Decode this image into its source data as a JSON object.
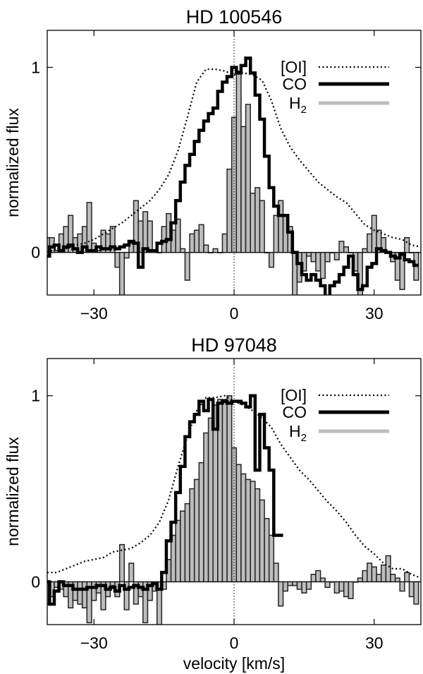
{
  "chart_data": [
    {
      "type": "line",
      "title": "HD 100546",
      "xlabel": "",
      "ylabel": "normalized flux",
      "xlim": [
        -40,
        40
      ],
      "ylim": [
        -0.23,
        1.2
      ],
      "xticks": [
        -30,
        0,
        30
      ],
      "xtick_labels": [
        "−30",
        "0",
        "30"
      ],
      "yticks": [
        0,
        1
      ],
      "ytick_labels": [
        "0",
        "1"
      ],
      "legend_position": "top-right",
      "series": [
        {
          "name": "[OI]",
          "style": "dotted",
          "color": "#000000",
          "x": [
            -40,
            -38,
            -36,
            -34,
            -32,
            -30,
            -28,
            -26,
            -24,
            -22,
            -20,
            -18,
            -16,
            -14,
            -12,
            -10,
            -8,
            -6,
            -4,
            -2,
            0,
            2,
            4,
            6,
            8,
            10,
            12,
            14,
            16,
            18,
            20,
            22,
            24,
            26,
            28,
            30,
            32,
            34,
            36,
            38,
            40
          ],
          "y": [
            0.0,
            0.02,
            0.02,
            0.04,
            0.05,
            0.07,
            0.1,
            0.13,
            0.16,
            0.2,
            0.24,
            0.28,
            0.34,
            0.42,
            0.55,
            0.73,
            0.92,
            0.99,
            0.99,
            0.98,
            0.96,
            0.97,
            0.96,
            0.93,
            0.82,
            0.67,
            0.57,
            0.5,
            0.44,
            0.38,
            0.34,
            0.3,
            0.27,
            0.21,
            0.15,
            0.12,
            0.1,
            0.08,
            0.07,
            0.04,
            0.03
          ]
        },
        {
          "name": "CO",
          "style": "step",
          "color": "#000000",
          "x": [
            -40,
            -39,
            -38,
            -37,
            -36,
            -35,
            -34,
            -33,
            -32,
            -31,
            -30,
            -29,
            -28,
            -27,
            -26,
            -25,
            -24,
            -23,
            -22,
            -21,
            -20,
            -19,
            -18,
            -17,
            -16,
            -15,
            -14,
            -13,
            -12,
            -11,
            -10,
            -9,
            -8,
            -7,
            -6,
            -5,
            -4,
            -3,
            -2,
            -1,
            0,
            1,
            2,
            3,
            4,
            5,
            6,
            7,
            8,
            9,
            10,
            11,
            12,
            13,
            14,
            15,
            16,
            17,
            18,
            19,
            20,
            21,
            22,
            23,
            24,
            25,
            26,
            27,
            28,
            29,
            30,
            31,
            32,
            33,
            34,
            35,
            36,
            37,
            38,
            39
          ],
          "y": [
            -0.02,
            0.03,
            0.04,
            0.01,
            0.03,
            0.04,
            0.02,
            0.0,
            0.03,
            0.01,
            0.01,
            0.03,
            0.02,
            0.02,
            0.03,
            0.02,
            0.03,
            0.04,
            0.06,
            0.05,
            -0.08,
            0.02,
            0.01,
            0.01,
            0.05,
            0.06,
            0.07,
            0.16,
            0.28,
            0.38,
            0.47,
            0.53,
            0.6,
            0.66,
            0.71,
            0.75,
            0.78,
            0.87,
            0.92,
            0.95,
            1.0,
            0.97,
            1.01,
            1.05,
            0.97,
            0.85,
            0.72,
            0.52,
            0.35,
            0.25,
            0.2,
            0.2,
            0.11,
            0.0,
            -0.06,
            -0.12,
            -0.15,
            -0.12,
            -0.15,
            -0.18,
            -0.25,
            -0.18,
            -0.16,
            -0.12,
            -0.08,
            -0.02,
            -0.12,
            -0.2,
            -0.18,
            -0.08,
            -0.06,
            0.02,
            0.01,
            0.0,
            -0.02,
            -0.03,
            -0.01,
            -0.04,
            -0.05,
            -0.07
          ]
        },
        {
          "name": "H2",
          "legend_label": "H",
          "legend_sub": "2",
          "style": "bar",
          "color": "#bdbdbd",
          "x": [
            -40,
            -39,
            -38,
            -37,
            -36,
            -35,
            -34,
            -33,
            -32,
            -31,
            -30,
            -29,
            -28,
            -27,
            -26,
            -25,
            -24,
            -23,
            -22,
            -21,
            -20,
            -19,
            -18,
            -17,
            -16,
            -15,
            -14,
            -13,
            -12,
            -11,
            -10,
            -9,
            -8,
            -7,
            -6,
            -5,
            -4,
            -3,
            -2,
            -1,
            0,
            1,
            2,
            3,
            4,
            5,
            6,
            7,
            8,
            9,
            10,
            11,
            12,
            13,
            14,
            15,
            16,
            17,
            18,
            19,
            20,
            21,
            22,
            23,
            24,
            25,
            26,
            27,
            28,
            29,
            30,
            31,
            32,
            33,
            34,
            35,
            36,
            37,
            38,
            39
          ],
          "y": [
            0.08,
            0.08,
            0.01,
            0.1,
            0.14,
            0.2,
            0.08,
            0.1,
            0.14,
            0.27,
            0.05,
            0.01,
            0.12,
            0.1,
            0.14,
            -0.08,
            -0.28,
            -0.03,
            0.05,
            0.28,
            0.17,
            0.22,
            0.17,
            0.01,
            0.0,
            0.14,
            0.21,
            0.12,
            0.18,
            0.02,
            -0.15,
            0.1,
            0.12,
            0.15,
            0.04,
            0.0,
            0.02,
            0.0,
            0.1,
            0.45,
            0.73,
            0.98,
            0.68,
            0.8,
            0.32,
            0.35,
            0.28,
            0.0,
            -0.08,
            0.2,
            0.28,
            0.2,
            0.14,
            -0.24,
            -0.16,
            -0.1,
            -0.02,
            -0.05,
            -0.1,
            -0.14,
            -0.05,
            0.0,
            -0.04,
            0.06,
            0.03,
            0.0,
            -0.1,
            -0.25,
            0.02,
            0.1,
            0.2,
            0.12,
            0.08,
            0.0,
            -0.05,
            -0.15,
            -0.2,
            0.08,
            0.0,
            -0.15
          ]
        }
      ]
    },
    {
      "type": "line",
      "title": "HD 97048",
      "xlabel": "velocity [km/s]",
      "ylabel": "normalized flux",
      "xlim": [
        -40,
        40
      ],
      "ylim": [
        -0.23,
        1.2
      ],
      "xticks": [
        -30,
        0,
        30
      ],
      "xtick_labels": [
        "−30",
        "0",
        "30"
      ],
      "yticks": [
        0,
        1
      ],
      "ytick_labels": [
        "0",
        "1"
      ],
      "legend_position": "top-right",
      "series": [
        {
          "name": "[OI]",
          "style": "dotted",
          "color": "#000000",
          "x": [
            -40,
            -38,
            -36,
            -34,
            -32,
            -30,
            -28,
            -26,
            -24,
            -22,
            -20,
            -18,
            -16,
            -14,
            -12,
            -10,
            -8,
            -6,
            -4,
            -2,
            0,
            2,
            4,
            6,
            8,
            10,
            12,
            14,
            16,
            18,
            20,
            22,
            24,
            26,
            28,
            30,
            32,
            34,
            36,
            38,
            40
          ],
          "y": [
            0.05,
            0.05,
            0.07,
            0.09,
            0.11,
            0.12,
            0.13,
            0.16,
            0.17,
            0.18,
            0.21,
            0.25,
            0.32,
            0.44,
            0.62,
            0.78,
            0.92,
            0.99,
            0.99,
            1.0,
            0.97,
            0.95,
            0.92,
            0.88,
            0.83,
            0.74,
            0.67,
            0.6,
            0.55,
            0.49,
            0.43,
            0.38,
            0.32,
            0.25,
            0.19,
            0.15,
            0.1,
            0.07,
            0.07,
            0.04,
            0.02
          ]
        },
        {
          "name": "CO",
          "style": "step",
          "color": "#000000",
          "x": [
            -40,
            -39,
            -38,
            -37,
            -36,
            -35,
            -34,
            -33,
            -32,
            -31,
            -30,
            -29,
            -28,
            -27,
            -26,
            -25,
            -24,
            -23,
            -22,
            -21,
            -20,
            -19,
            -18,
            -17,
            -16,
            -15,
            -14,
            -13,
            -12,
            -11,
            -10,
            -9,
            -8,
            -7,
            -6,
            -5,
            -4,
            -3,
            -2,
            -1,
            0,
            1,
            2,
            3,
            4,
            5,
            6,
            7,
            8,
            9,
            10
          ],
          "y": [
            0.0,
            -0.12,
            -0.05,
            0.0,
            -0.02,
            -0.02,
            -0.04,
            -0.04,
            -0.04,
            -0.03,
            -0.03,
            -0.02,
            -0.02,
            -0.04,
            -0.03,
            -0.05,
            -0.02,
            -0.04,
            -0.03,
            -0.02,
            -0.03,
            -0.04,
            -0.02,
            -0.01,
            -0.04,
            0.05,
            0.22,
            0.32,
            0.48,
            0.62,
            0.78,
            0.86,
            0.9,
            0.97,
            0.92,
            0.98,
            0.82,
            0.96,
            0.97,
            0.96,
            0.97,
            0.97,
            0.96,
            0.94,
            1.0,
            0.6,
            0.9,
            0.72,
            0.6,
            0.25,
            0.25
          ]
        },
        {
          "name": "H2",
          "legend_label": "H",
          "legend_sub": "2",
          "style": "bar",
          "color": "#bdbdbd",
          "x": [
            -40,
            -39,
            -38,
            -37,
            -36,
            -35,
            -34,
            -33,
            -32,
            -31,
            -30,
            -29,
            -28,
            -27,
            -26,
            -25,
            -24,
            -23,
            -22,
            -21,
            -20,
            -19,
            -18,
            -17,
            -16,
            -15,
            -14,
            -13,
            -12,
            -11,
            -10,
            -9,
            -8,
            -7,
            -6,
            -5,
            -4,
            -3,
            -2,
            -1,
            0,
            1,
            2,
            3,
            4,
            5,
            6,
            7,
            8,
            9,
            10,
            11,
            12,
            13,
            14,
            15,
            16,
            17,
            18,
            19,
            20,
            21,
            22,
            23,
            24,
            25,
            26,
            27,
            28,
            29,
            30,
            31,
            32,
            33,
            34,
            35,
            36,
            37,
            38,
            39
          ],
          "y": [
            -0.12,
            -0.08,
            -0.03,
            -0.04,
            -0.08,
            -0.14,
            -0.1,
            -0.12,
            -0.14,
            -0.22,
            -0.1,
            -0.06,
            -0.15,
            -0.08,
            -0.02,
            -0.08,
            0.2,
            -0.15,
            0.1,
            -0.12,
            -0.08,
            -0.22,
            -0.1,
            -0.05,
            -0.25,
            -0.04,
            0.12,
            0.25,
            0.33,
            0.38,
            0.42,
            0.5,
            0.55,
            0.64,
            0.8,
            0.88,
            0.95,
            0.98,
            0.98,
            1.0,
            0.72,
            0.63,
            0.58,
            0.55,
            0.54,
            0.5,
            0.44,
            0.34,
            0.25,
            0.1,
            -0.13,
            -0.05,
            -0.02,
            -0.02,
            -0.04,
            -0.06,
            -0.04,
            0.04,
            0.06,
            0.02,
            -0.03,
            0.0,
            -0.06,
            -0.05,
            -0.08,
            -0.09,
            0.0,
            0.02,
            0.06,
            0.1,
            0.08,
            0.04,
            0.09,
            0.14,
            0.04,
            0.02,
            -0.05,
            0.05,
            -0.08,
            -0.12
          ]
        }
      ]
    }
  ]
}
